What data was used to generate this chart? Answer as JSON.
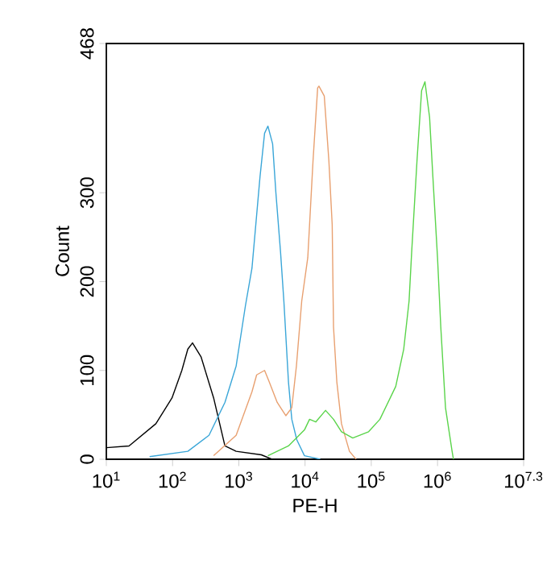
{
  "chart_data": {
    "type": "line",
    "xlabel": "PE-H",
    "ylabel": "Count",
    "log": "x",
    "xlim": [
      10,
      19952623
    ],
    "ylim": [
      0,
      468
    ],
    "xticks": [
      {
        "value": 10,
        "label": "10$^{1}$"
      },
      {
        "value": 100,
        "label": "10$^{2}$"
      },
      {
        "value": 1000,
        "label": "10$^{3}$"
      },
      {
        "value": 10000,
        "label": "10$^{4}$"
      },
      {
        "value": 100000,
        "label": "10$^{5}$"
      },
      {
        "value": 1000000,
        "label": "10$^{6}$"
      },
      {
        "value": 19952623,
        "label": "10$^{7.3}$"
      }
    ],
    "yticks": [
      0,
      100,
      200,
      300,
      468
    ],
    "grid": false,
    "marker": "none",
    "line_style": "solid",
    "series": [
      {
        "color": "#000000",
        "x": [
          10,
          22,
          56,
          98,
          138,
          170,
          200,
          270,
          417,
          617,
          912,
          2190,
          3160
        ],
        "values": [
          13,
          15,
          40,
          69,
          100,
          124,
          131,
          115,
          69,
          15,
          9,
          5,
          0
        ]
      },
      {
        "color": "#3aa6d8",
        "x": [
          45,
          170,
          355,
          617,
          912,
          1260,
          1580,
          2090,
          2450,
          2750,
          3240,
          3630,
          4270,
          4790,
          5620,
          6310,
          7500,
          9800,
          17000
        ],
        "values": [
          3,
          9,
          27,
          64,
          105,
          173,
          215,
          318,
          367,
          375,
          355,
          300,
          233,
          178,
          87,
          45,
          22,
          4,
          0
        ]
      },
      {
        "color": "#e8a070",
        "x": [
          417,
          912,
          1580,
          1860,
          2450,
          2880,
          3800,
          5130,
          6310,
          7410,
          8910,
          11000,
          13200,
          15500,
          16200,
          19500,
          22900,
          25700,
          26900,
          30200,
          35500,
          46800,
          58900
        ],
        "values": [
          4,
          27,
          76,
          95,
          100,
          87,
          64,
          49,
          58,
          105,
          178,
          227,
          336,
          418,
          420,
          409,
          336,
          264,
          149,
          87,
          40,
          9,
          0
        ]
      },
      {
        "color": "#5ad44a",
        "x": [
          2750,
          5620,
          9800,
          11700,
          14500,
          20400,
          26900,
          35500,
          52500,
          91200,
          135000,
          234000,
          309000,
          372000,
          407000,
          490000,
          575000,
          646000,
          759000,
          851000,
          1000000,
          1120000,
          1320000,
          1660000,
          1740000
        ],
        "values": [
          4,
          15,
          33,
          45,
          42,
          55,
          45,
          31,
          24,
          31,
          45,
          82,
          124,
          178,
          233,
          336,
          415,
          425,
          385,
          318,
          227,
          149,
          58,
          9,
          0
        ]
      }
    ]
  }
}
